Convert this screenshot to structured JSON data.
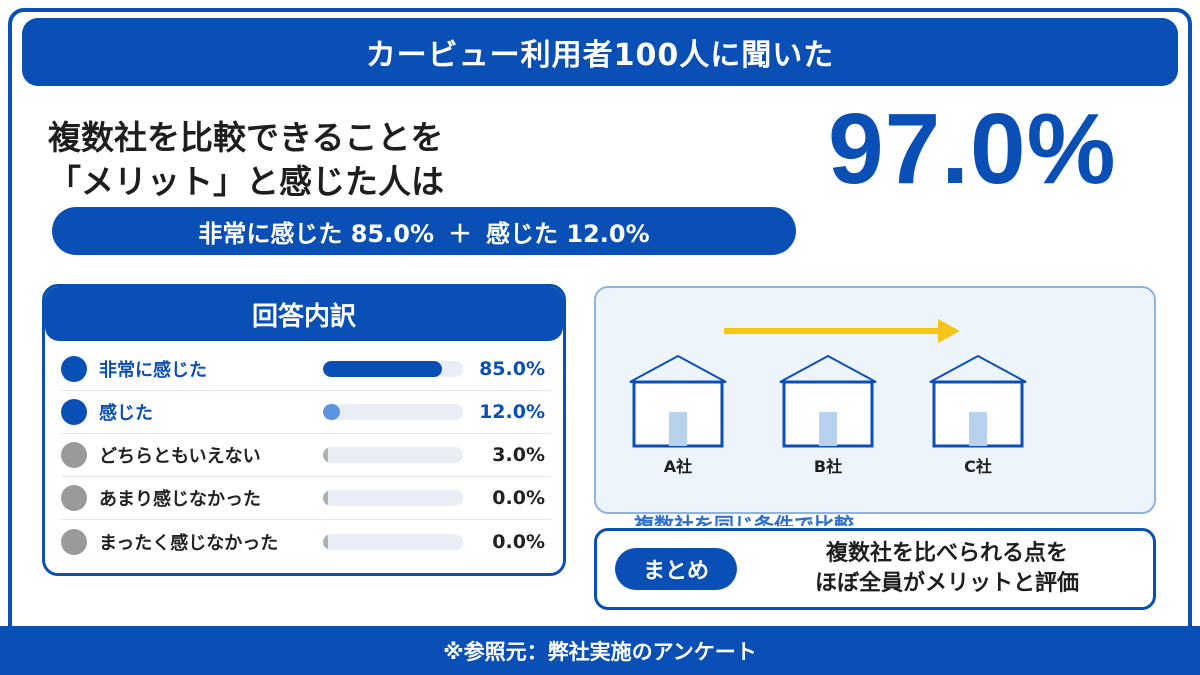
{
  "header": {
    "title": "カービュー利用者100人に聞いた"
  },
  "headline": {
    "line1": "複数社を比較できることを",
    "line2": "「メリット」と感じた人は"
  },
  "big_value": "97.0%",
  "breakdown_pill": {
    "part1": "非常に感じた 85.0%",
    "plus": "＋",
    "part2": "感じた 12.0%"
  },
  "panel": {
    "title": "回答内訳",
    "rows": [
      {
        "label": "非常に感じた",
        "value": "85.0%",
        "fraction": 0.85,
        "color": "#0a4fb5",
        "bar_color": "#0a4fb5",
        "label_color": "#0a4fb5"
      },
      {
        "label": "感じた",
        "value": "12.0%",
        "fraction": 0.12,
        "color": "#0a4fb5",
        "bar_color": "#5b93e0",
        "label_color": "#0a4fb5"
      },
      {
        "label": "どちらともいえない",
        "value": "3.0%",
        "fraction": 0.03,
        "color": "#9a9a9a",
        "bar_color": "#b0b0b0",
        "label_color": "#222222"
      },
      {
        "label": "あまり感じなかった",
        "value": "0.0%",
        "fraction": 0.0,
        "color": "#9a9a9a",
        "bar_color": "#b0b0b0",
        "label_color": "#222222"
      },
      {
        "label": "まったく感じなかった",
        "value": "0.0%",
        "fraction": 0.0,
        "color": "#9a9a9a",
        "bar_color": "#b0b0b0",
        "label_color": "#222222"
      }
    ]
  },
  "illustration": {
    "companies": [
      "A社",
      "B社",
      "C社"
    ],
    "caption": "複数社を同じ条件で比較",
    "arrow_color": "#f5c518"
  },
  "summary": {
    "badge": "まとめ",
    "line1": "複数社を比べられる点を",
    "line2": "ほぼ全員がメリットと評価"
  },
  "footer": {
    "note": "※参照元：弊社実施のアンケート"
  },
  "colors": {
    "primary": "#0a4fb5",
    "accent": "#f5c518"
  }
}
